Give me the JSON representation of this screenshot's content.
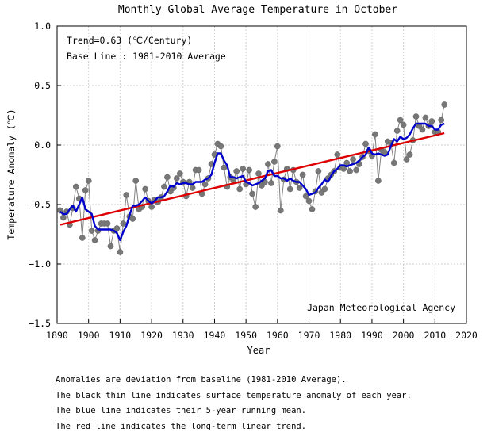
{
  "chart_data": {
    "type": "line",
    "title": "Monthly Global Average Temperature in October",
    "xlabel": "Year",
    "ylabel": "Temperature Anomaly (℃)",
    "xlim": [
      1890,
      2020
    ],
    "ylim": [
      -1.5,
      1.0
    ],
    "xticks": [
      "1890",
      "1900",
      "1910",
      "1920",
      "1930",
      "1940",
      "1950",
      "1960",
      "1970",
      "1980",
      "1990",
      "2000",
      "2010",
      "2020"
    ],
    "yticks": [
      "1.0",
      "0.5",
      "0.0",
      "−0.5",
      "−1.0",
      "−1.5"
    ],
    "grid": true,
    "annotations": {
      "trend": "Trend=0.63 (℃/Century)",
      "baseline": "Base Line : 1981-2010 Average",
      "agency": "Japan Meteorological Agency"
    },
    "series": [
      {
        "name": "Annual anomaly",
        "color": "#808080",
        "x": [
          1891,
          1892,
          1893,
          1894,
          1895,
          1896,
          1897,
          1898,
          1899,
          1900,
          1901,
          1902,
          1903,
          1904,
          1905,
          1906,
          1907,
          1908,
          1909,
          1910,
          1911,
          1912,
          1913,
          1914,
          1915,
          1916,
          1917,
          1918,
          1919,
          1920,
          1921,
          1922,
          1923,
          1924,
          1925,
          1926,
          1927,
          1928,
          1929,
          1930,
          1931,
          1932,
          1933,
          1934,
          1935,
          1936,
          1937,
          1938,
          1939,
          1940,
          1941,
          1942,
          1943,
          1944,
          1945,
          1946,
          1947,
          1948,
          1949,
          1950,
          1951,
          1952,
          1953,
          1954,
          1955,
          1956,
          1957,
          1958,
          1959,
          1960,
          1961,
          1962,
          1963,
          1964,
          1965,
          1966,
          1967,
          1968,
          1969,
          1970,
          1971,
          1972,
          1973,
          1974,
          1975,
          1976,
          1977,
          1978,
          1979,
          1980,
          1981,
          1982,
          1983,
          1984,
          1985,
          1986,
          1987,
          1988,
          1989,
          1990,
          1991,
          1992,
          1993,
          1994,
          1995,
          1996,
          1997,
          1998,
          1999,
          2000,
          2001,
          2002,
          2003,
          2004,
          2005,
          2006,
          2007,
          2008,
          2009,
          2010,
          2011,
          2012,
          2013
        ],
        "values": [
          -0.55,
          -0.61,
          -0.56,
          -0.67,
          -0.53,
          -0.35,
          -0.45,
          -0.78,
          -0.38,
          -0.3,
          -0.72,
          -0.8,
          -0.72,
          -0.66,
          -0.66,
          -0.66,
          -0.85,
          -0.72,
          -0.7,
          -0.9,
          -0.66,
          -0.42,
          -0.6,
          -0.62,
          -0.3,
          -0.54,
          -0.52,
          -0.37,
          -0.47,
          -0.52,
          -0.46,
          -0.48,
          -0.44,
          -0.35,
          -0.27,
          -0.39,
          -0.36,
          -0.28,
          -0.24,
          -0.31,
          -0.43,
          -0.31,
          -0.36,
          -0.21,
          -0.21,
          -0.41,
          -0.33,
          -0.28,
          -0.16,
          -0.08,
          0.01,
          -0.01,
          -0.19,
          -0.35,
          -0.27,
          -0.3,
          -0.22,
          -0.37,
          -0.2,
          -0.33,
          -0.21,
          -0.41,
          -0.52,
          -0.24,
          -0.34,
          -0.31,
          -0.16,
          -0.32,
          -0.14,
          -0.01,
          -0.55,
          -0.29,
          -0.2,
          -0.37,
          -0.21,
          -0.31,
          -0.36,
          -0.25,
          -0.43,
          -0.47,
          -0.54,
          -0.39,
          -0.22,
          -0.4,
          -0.37,
          -0.28,
          -0.25,
          -0.22,
          -0.08,
          -0.19,
          -0.2,
          -0.15,
          -0.22,
          -0.12,
          -0.21,
          -0.16,
          -0.1,
          0.01,
          -0.05,
          -0.09,
          0.09,
          -0.3,
          -0.04,
          -0.06,
          0.03,
          0.02,
          -0.15,
          0.12,
          0.21,
          0.17,
          -0.12,
          -0.08,
          0.04,
          0.24,
          0.16,
          0.13,
          0.23,
          0.16,
          0.2,
          0.11,
          0.11,
          0.21,
          0.34
        ]
      },
      {
        "name": "5-year running mean",
        "color": "#0000cc",
        "x": [
          1891,
          1892,
          1893,
          1894,
          1895,
          1896,
          1897,
          1898,
          1899,
          1900,
          1901,
          1902,
          1903,
          1904,
          1905,
          1906,
          1907,
          1908,
          1909,
          1910,
          1911,
          1912,
          1913,
          1914,
          1915,
          1916,
          1917,
          1918,
          1919,
          1920,
          1921,
          1922,
          1923,
          1924,
          1925,
          1926,
          1927,
          1928,
          1929,
          1930,
          1931,
          1932,
          1933,
          1934,
          1935,
          1936,
          1937,
          1938,
          1939,
          1940,
          1941,
          1942,
          1943,
          1944,
          1945,
          1946,
          1947,
          1948,
          1949,
          1950,
          1951,
          1952,
          1953,
          1954,
          1955,
          1956,
          1957,
          1958,
          1959,
          1960,
          1961,
          1962,
          1963,
          1964,
          1965,
          1966,
          1967,
          1968,
          1969,
          1970,
          1971,
          1972,
          1973,
          1974,
          1975,
          1976,
          1977,
          1978,
          1979,
          1980,
          1981,
          1982,
          1983,
          1984,
          1985,
          1986,
          1987,
          1988,
          1989,
          1990,
          1991,
          1992,
          1993,
          1994,
          1995,
          1996,
          1997,
          1998,
          1999,
          2000,
          2001,
          2002,
          2003,
          2004,
          2005,
          2006,
          2007,
          2008,
          2009,
          2010,
          2011,
          2012,
          2013
        ],
        "values": [
          -0.56,
          -0.58,
          -0.58,
          -0.54,
          -0.51,
          -0.56,
          -0.5,
          -0.44,
          -0.54,
          -0.56,
          -0.58,
          -0.68,
          -0.71,
          -0.71,
          -0.71,
          -0.71,
          -0.71,
          -0.72,
          -0.74,
          -0.8,
          -0.73,
          -0.68,
          -0.59,
          -0.51,
          -0.51,
          -0.5,
          -0.47,
          -0.44,
          -0.47,
          -0.49,
          -0.47,
          -0.44,
          -0.44,
          -0.43,
          -0.39,
          -0.34,
          -0.35,
          -0.32,
          -0.33,
          -0.32,
          -0.32,
          -0.33,
          -0.33,
          -0.31,
          -0.31,
          -0.31,
          -0.29,
          -0.28,
          -0.25,
          -0.15,
          -0.07,
          -0.07,
          -0.13,
          -0.17,
          -0.27,
          -0.27,
          -0.28,
          -0.27,
          -0.26,
          -0.31,
          -0.32,
          -0.34,
          -0.33,
          -0.32,
          -0.3,
          -0.28,
          -0.22,
          -0.21,
          -0.26,
          -0.26,
          -0.28,
          -0.28,
          -0.3,
          -0.28,
          -0.3,
          -0.31,
          -0.31,
          -0.34,
          -0.37,
          -0.42,
          -0.41,
          -0.4,
          -0.36,
          -0.33,
          -0.29,
          -0.31,
          -0.26,
          -0.22,
          -0.2,
          -0.17,
          -0.17,
          -0.18,
          -0.17,
          -0.16,
          -0.15,
          -0.13,
          -0.1,
          -0.08,
          -0.02,
          -0.07,
          -0.08,
          -0.07,
          -0.08,
          -0.09,
          -0.08,
          -0.01,
          0.05,
          0.03,
          0.07,
          0.05,
          0.06,
          0.09,
          0.14,
          0.18,
          0.18,
          0.18,
          0.18,
          0.16,
          0.16,
          0.13,
          0.13,
          0.17,
          0.18
        ]
      },
      {
        "name": "Linear trend",
        "color": "#dd0000",
        "x": [
          1891,
          2013
        ],
        "values": [
          -0.67,
          0.1
        ]
      }
    ],
    "footnotes": [
      "Anomalies are deviation from baseline (1981-2010 Average).",
      "The black thin line indicates surface temperature anomaly of each year.",
      "The blue line indicates their 5-year running mean.",
      "The red line indicates the long-term linear trend."
    ]
  }
}
